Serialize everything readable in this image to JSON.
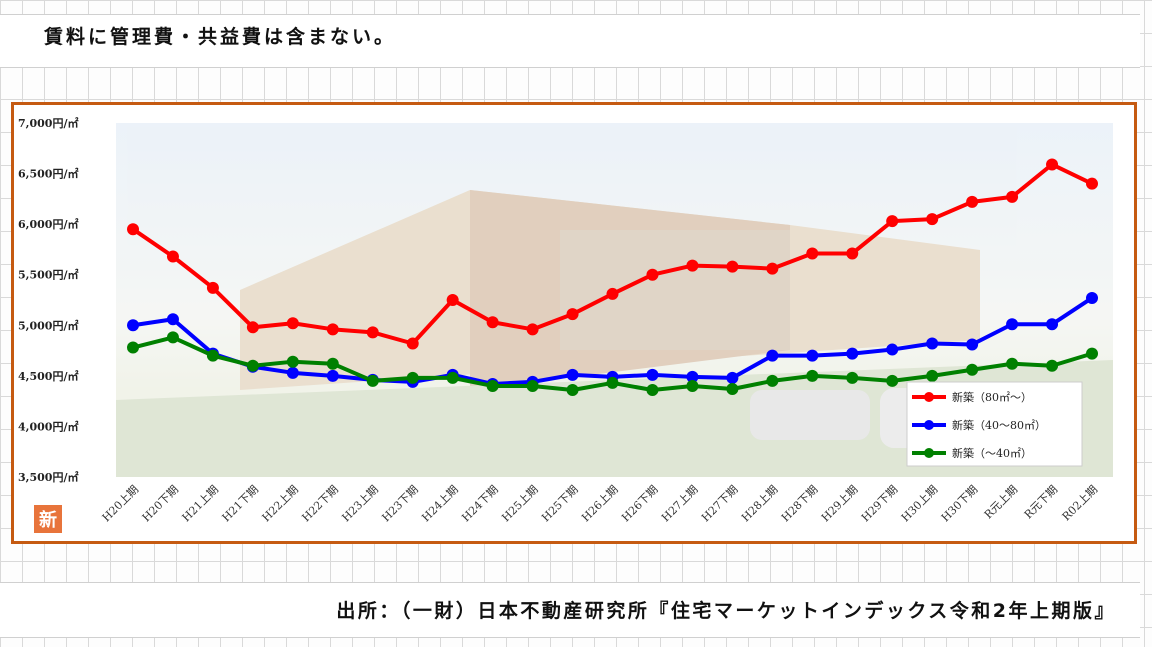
{
  "note": "賃料に管理費・共益費は含まない。",
  "source": "出所：（一財）日本不動産研究所『住宅マーケットインデックス令和2年上期版』",
  "logo_text": "新",
  "colors": {
    "frame": "#c55a11",
    "series": [
      "#ff0000",
      "#0000ff",
      "#008000"
    ]
  },
  "chart_data": {
    "type": "line",
    "title": "",
    "xlabel": "",
    "ylabel": "",
    "ylim": [
      3500,
      7000
    ],
    "yticks": [
      3500,
      4000,
      4500,
      5000,
      5500,
      6000,
      6500,
      7000
    ],
    "ytick_labels": [
      "3,500円/㎡",
      "4,000円/㎡",
      "4,500円/㎡",
      "5,000円/㎡",
      "5,500円/㎡",
      "6,000円/㎡",
      "6,500円/㎡",
      "7,000円/㎡"
    ],
    "categories": [
      "H20上期",
      "H20下期",
      "H21上期",
      "H21下期",
      "H22上期",
      "H22下期",
      "H23上期",
      "H23下期",
      "H24上期",
      "H24下期",
      "H25上期",
      "H25下期",
      "H26上期",
      "H26下期",
      "H27上期",
      "H27下期",
      "H28上期",
      "H28下期",
      "H29上期",
      "H29下期",
      "H30上期",
      "H30下期",
      "R元上期",
      "R元下期",
      "R02上期"
    ],
    "legend_position": "bottom-right",
    "series": [
      {
        "name": "新築（80㎡～）",
        "values": [
          5950,
          5680,
          5370,
          4980,
          5020,
          4960,
          4930,
          4820,
          5250,
          5030,
          4960,
          5110,
          5310,
          5500,
          5590,
          5580,
          5560,
          5710,
          5710,
          6030,
          6050,
          6220,
          6270,
          6590,
          6400
        ]
      },
      {
        "name": "新築（40～80㎡）",
        "values": [
          5000,
          5060,
          4720,
          4590,
          4530,
          4500,
          4460,
          4440,
          4510,
          4420,
          4440,
          4510,
          4490,
          4510,
          4490,
          4480,
          4700,
          4700,
          4720,
          4760,
          4820,
          4810,
          5010,
          5010,
          5270
        ]
      },
      {
        "name": "新築（～40㎡）",
        "values": [
          4780,
          4880,
          4700,
          4600,
          4640,
          4620,
          4450,
          4480,
          4480,
          4400,
          4400,
          4360,
          4430,
          4360,
          4400,
          4370,
          4450,
          4500,
          4480,
          4450,
          4500,
          4560,
          4620,
          4600,
          4720
        ]
      }
    ]
  }
}
